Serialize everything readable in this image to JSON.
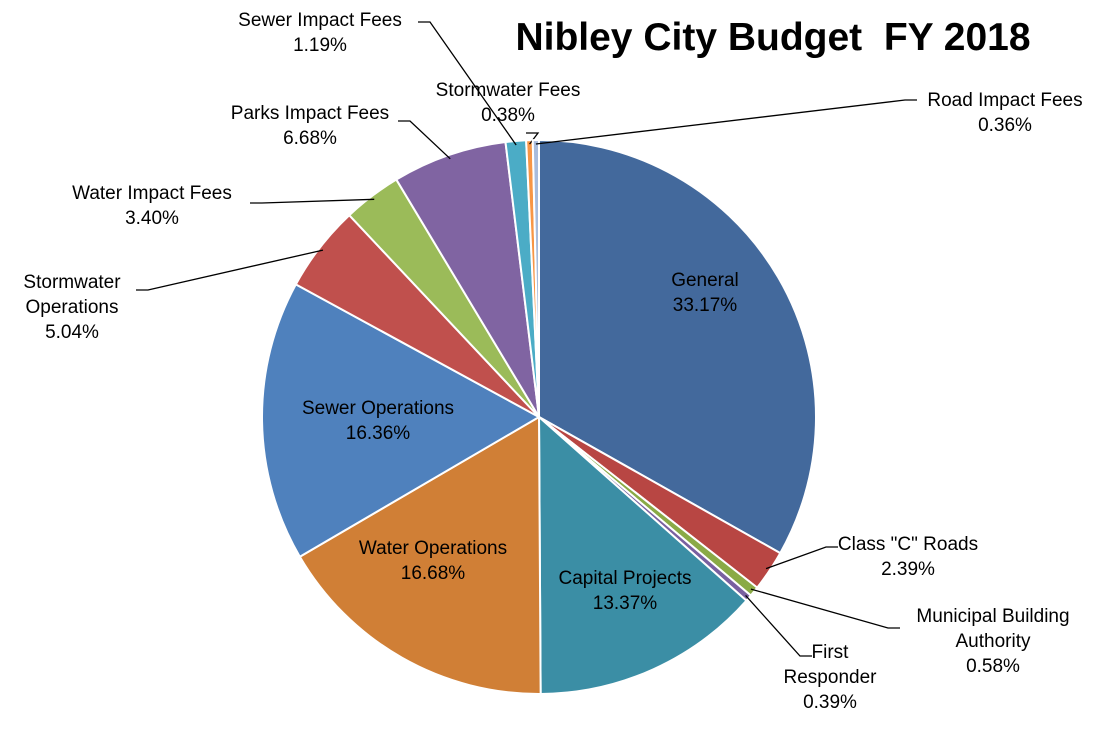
{
  "chart_data": {
    "type": "pie",
    "title": "Nibley City Budget  FY 2018",
    "categories": [
      "General",
      "Class \"C\" Roads",
      "Municipal Building Authority",
      "First Responder",
      "Capital Projects",
      "Water Operations",
      "Sewer Operations",
      "Stormwater Operations",
      "Water Impact Fees",
      "Parks Impact Fees",
      "Sewer Impact Fees",
      "Stormwater Fees",
      "Road Impact Fees"
    ],
    "values": [
      33.17,
      2.39,
      0.58,
      0.39,
      13.37,
      16.68,
      16.36,
      5.04,
      3.4,
      6.68,
      1.19,
      0.38,
      0.36
    ],
    "value_labels": [
      "33.17%",
      "2.39%",
      "0.58%",
      "0.39%",
      "13.37%",
      "16.68%",
      "16.36%",
      "5.04%",
      "3.40%",
      "6.68%",
      "1.19%",
      "0.38%",
      "0.36%"
    ],
    "colors": [
      "#43699c",
      "#b84643",
      "#8aaa46",
      "#7960a0",
      "#3b8ea5",
      "#d07f36",
      "#4f81bd",
      "#c0504d",
      "#9bbb59",
      "#8064a2",
      "#4bacc6",
      "#f79646",
      "#a9bcdc"
    ]
  }
}
